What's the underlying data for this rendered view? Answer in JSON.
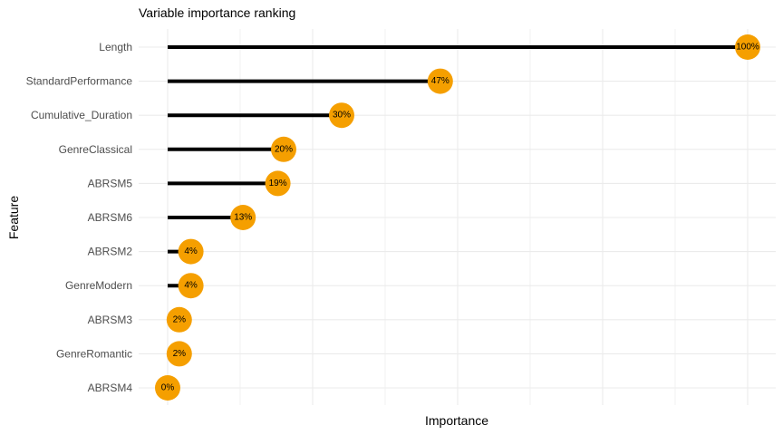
{
  "chart_data": {
    "type": "lollipop",
    "title": "Variable importance ranking",
    "xlabel": "Importance",
    "ylabel": "Feature",
    "xlim": [
      0,
      100
    ],
    "grid": true,
    "legend": "none",
    "categories": [
      "Length",
      "StandardPerformance",
      "Cumulative_Duration",
      "GenreClassical",
      "ABRSM5",
      "ABRSM6",
      "ABRSM2",
      "GenreModern",
      "ABRSM3",
      "GenreRomantic",
      "ABRSM4"
    ],
    "values": [
      100,
      47,
      30,
      20,
      19,
      13,
      4,
      4,
      2,
      2,
      0
    ],
    "labels": [
      "100%",
      "47%",
      "30%",
      "20%",
      "19%",
      "13%",
      "4%",
      "4%",
      "2%",
      "2%",
      "0%"
    ],
    "colors": {
      "stem": "#000000",
      "point": "#f59f00",
      "grid": "#ebebeb"
    }
  }
}
